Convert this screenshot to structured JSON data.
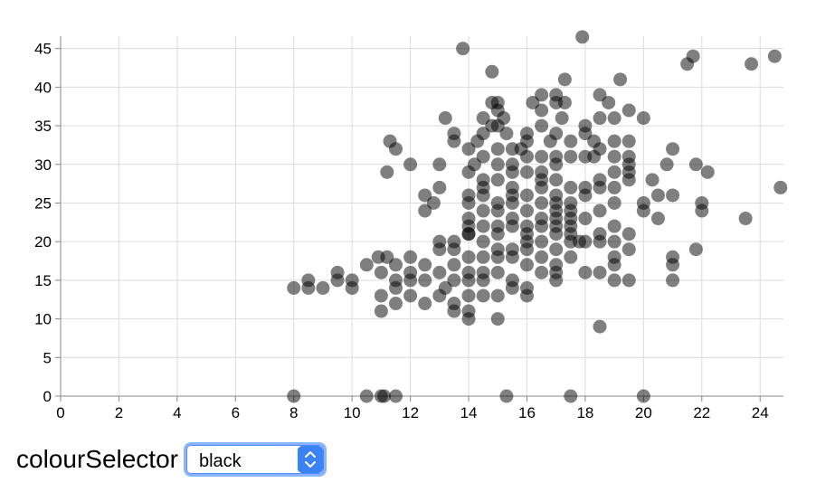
{
  "chart_data": {
    "type": "scatter",
    "title": "",
    "xlabel": "",
    "ylabel": "",
    "xlim": [
      0,
      24.8
    ],
    "ylim": [
      0,
      46.6
    ],
    "xticks": [
      "0",
      "2",
      "4",
      "6",
      "8",
      "10",
      "12",
      "14",
      "16",
      "18",
      "20",
      "22",
      "24"
    ],
    "yticks": [
      "0",
      "5",
      "10",
      "15",
      "20",
      "25",
      "30",
      "35",
      "40",
      "45"
    ],
    "grid": true,
    "point_color": "#000000",
    "point_opacity": 0.5,
    "points": [
      [
        8,
        0
      ],
      [
        10.5,
        0
      ],
      [
        11,
        0
      ],
      [
        11.1,
        0
      ],
      [
        11.5,
        0
      ],
      [
        15.3,
        0
      ],
      [
        17.5,
        0
      ],
      [
        20,
        0
      ],
      [
        8,
        14
      ],
      [
        8.5,
        15
      ],
      [
        8.5,
        14
      ],
      [
        9,
        14
      ],
      [
        9.5,
        16
      ],
      [
        9.5,
        15
      ],
      [
        10,
        15
      ],
      [
        10,
        14
      ],
      [
        10.5,
        17
      ],
      [
        10.9,
        18
      ],
      [
        11,
        13
      ],
      [
        11,
        11
      ],
      [
        11,
        16
      ],
      [
        11.2,
        18
      ],
      [
        11.5,
        17
      ],
      [
        11.5,
        15
      ],
      [
        11.5,
        14
      ],
      [
        11.5,
        12
      ],
      [
        12,
        18
      ],
      [
        12,
        16
      ],
      [
        12,
        13
      ],
      [
        12,
        15
      ],
      [
        12.5,
        17
      ],
      [
        12.5,
        15
      ],
      [
        12.5,
        12
      ],
      [
        13,
        13
      ],
      [
        13,
        16
      ],
      [
        13,
        19
      ],
      [
        13,
        20
      ],
      [
        13.2,
        14
      ],
      [
        13.5,
        15
      ],
      [
        13.5,
        12
      ],
      [
        13.5,
        11
      ],
      [
        13.5,
        17
      ],
      [
        13.5,
        19
      ],
      [
        13.5,
        20
      ],
      [
        14,
        16
      ],
      [
        14,
        15
      ],
      [
        14,
        13
      ],
      [
        14,
        11
      ],
      [
        14,
        10
      ],
      [
        14,
        18
      ],
      [
        14,
        22
      ],
      [
        14,
        21
      ],
      [
        14.5,
        15
      ],
      [
        14.5,
        13
      ],
      [
        14.5,
        18
      ],
      [
        14.5,
        16
      ],
      [
        15,
        16
      ],
      [
        15,
        13
      ],
      [
        15,
        10
      ],
      [
        15,
        18
      ],
      [
        15,
        19
      ],
      [
        15,
        21
      ],
      [
        15.5,
        15
      ],
      [
        15.5,
        14
      ],
      [
        15.5,
        19
      ],
      [
        15.5,
        18
      ],
      [
        16,
        14
      ],
      [
        16,
        13
      ],
      [
        16,
        17
      ],
      [
        16,
        19
      ],
      [
        16,
        21
      ],
      [
        16.5,
        18
      ],
      [
        16.5,
        16
      ],
      [
        17,
        16
      ],
      [
        17,
        15
      ],
      [
        17,
        17
      ],
      [
        17,
        19
      ],
      [
        17.5,
        18
      ],
      [
        17.5,
        20
      ],
      [
        18,
        16
      ],
      [
        18,
        20
      ],
      [
        18.5,
        20
      ],
      [
        18.5,
        9
      ],
      [
        18.5,
        16
      ],
      [
        19,
        15
      ],
      [
        19,
        17
      ],
      [
        19,
        18
      ],
      [
        19,
        20
      ],
      [
        19.5,
        15
      ],
      [
        19.5,
        19
      ],
      [
        19.5,
        21
      ],
      [
        11.2,
        29
      ],
      [
        11.3,
        33
      ],
      [
        11.5,
        32
      ],
      [
        12,
        30
      ],
      [
        12.5,
        26
      ],
      [
        12.5,
        24
      ],
      [
        12.8,
        25
      ],
      [
        13,
        30
      ],
      [
        13,
        27
      ],
      [
        13.2,
        36
      ],
      [
        13.5,
        34
      ],
      [
        13.5,
        33
      ],
      [
        13.8,
        45
      ],
      [
        14,
        32
      ],
      [
        14,
        29
      ],
      [
        14,
        26
      ],
      [
        14,
        25
      ],
      [
        14,
        23
      ],
      [
        14,
        21
      ],
      [
        14.2,
        30
      ],
      [
        14.3,
        33
      ],
      [
        14.5,
        36
      ],
      [
        14.5,
        34
      ],
      [
        14.5,
        31
      ],
      [
        14.5,
        28
      ],
      [
        14.5,
        27
      ],
      [
        14.5,
        26
      ],
      [
        14.5,
        24
      ],
      [
        14.5,
        22
      ],
      [
        14.5,
        20
      ],
      [
        14.8,
        42
      ],
      [
        14.8,
        38
      ],
      [
        14.8,
        35
      ],
      [
        15,
        38
      ],
      [
        15,
        37
      ],
      [
        15,
        35
      ],
      [
        15,
        32
      ],
      [
        15,
        30
      ],
      [
        15,
        28
      ],
      [
        15,
        25
      ],
      [
        15,
        24
      ],
      [
        15,
        22
      ],
      [
        15.2,
        36
      ],
      [
        15.3,
        34
      ],
      [
        15.5,
        32
      ],
      [
        15.5,
        30
      ],
      [
        15.5,
        29
      ],
      [
        15.5,
        27
      ],
      [
        15.5,
        26
      ],
      [
        15.5,
        25
      ],
      [
        15.5,
        23
      ],
      [
        15.5,
        22
      ],
      [
        15.8,
        32
      ],
      [
        16,
        34
      ],
      [
        16,
        33
      ],
      [
        16,
        31
      ],
      [
        16,
        29
      ],
      [
        16,
        26
      ],
      [
        16,
        24
      ],
      [
        16,
        22
      ],
      [
        16,
        20
      ],
      [
        16.2,
        38
      ],
      [
        16.5,
        39
      ],
      [
        16.5,
        37
      ],
      [
        16.5,
        35
      ],
      [
        16.5,
        31
      ],
      [
        16.5,
        29
      ],
      [
        16.5,
        28
      ],
      [
        16.5,
        27
      ],
      [
        16.5,
        25
      ],
      [
        16.5,
        23
      ],
      [
        16.5,
        22
      ],
      [
        16.5,
        20
      ],
      [
        16.8,
        33
      ],
      [
        17,
        39
      ],
      [
        17,
        38
      ],
      [
        17,
        34
      ],
      [
        17,
        31
      ],
      [
        17,
        30
      ],
      [
        17,
        28
      ],
      [
        17,
        26
      ],
      [
        17,
        25
      ],
      [
        17,
        24
      ],
      [
        17,
        23
      ],
      [
        17,
        22
      ],
      [
        17,
        21
      ],
      [
        17.2,
        36
      ],
      [
        17.3,
        41
      ],
      [
        17.3,
        38
      ],
      [
        17.5,
        33
      ],
      [
        17.5,
        31
      ],
      [
        17.5,
        27
      ],
      [
        17.5,
        25
      ],
      [
        17.5,
        24
      ],
      [
        17.5,
        23
      ],
      [
        17.5,
        22
      ],
      [
        17.5,
        21
      ],
      [
        17.8,
        20
      ],
      [
        18,
        35
      ],
      [
        18,
        34
      ],
      [
        18,
        31
      ],
      [
        18,
        27
      ],
      [
        18,
        26
      ],
      [
        18,
        23
      ],
      [
        18.3,
        33
      ],
      [
        18.3,
        31
      ],
      [
        18.5,
        39
      ],
      [
        18.5,
        36
      ],
      [
        18.5,
        32
      ],
      [
        18.5,
        28
      ],
      [
        18.5,
        27
      ],
      [
        18.5,
        24
      ],
      [
        18.5,
        21
      ],
      [
        18.8,
        38
      ],
      [
        19,
        36
      ],
      [
        19,
        33
      ],
      [
        19,
        31
      ],
      [
        19,
        29
      ],
      [
        19,
        27
      ],
      [
        19,
        25
      ],
      [
        19,
        22
      ],
      [
        19.2,
        41
      ],
      [
        19.5,
        37
      ],
      [
        19.5,
        33
      ],
      [
        19.5,
        31
      ],
      [
        19.5,
        30
      ],
      [
        19.5,
        29
      ],
      [
        19.5,
        28
      ],
      [
        20,
        36
      ],
      [
        20,
        25
      ],
      [
        20,
        24
      ],
      [
        20.3,
        28
      ],
      [
        20.5,
        26
      ],
      [
        20.5,
        23
      ],
      [
        20.8,
        30
      ],
      [
        21,
        32
      ],
      [
        21,
        26
      ],
      [
        21,
        18
      ],
      [
        21,
        17
      ],
      [
        21,
        15
      ],
      [
        21.5,
        43
      ],
      [
        21.7,
        44
      ],
      [
        21.8,
        30
      ],
      [
        21.8,
        19
      ],
      [
        22,
        25
      ],
      [
        22,
        24
      ],
      [
        22.2,
        29
      ],
      [
        23.5,
        23
      ],
      [
        23.7,
        43
      ],
      [
        24.5,
        44
      ],
      [
        24.7,
        27
      ],
      [
        17.9,
        46.5
      ]
    ]
  },
  "selector": {
    "label": "colourSelector",
    "value": "black"
  }
}
